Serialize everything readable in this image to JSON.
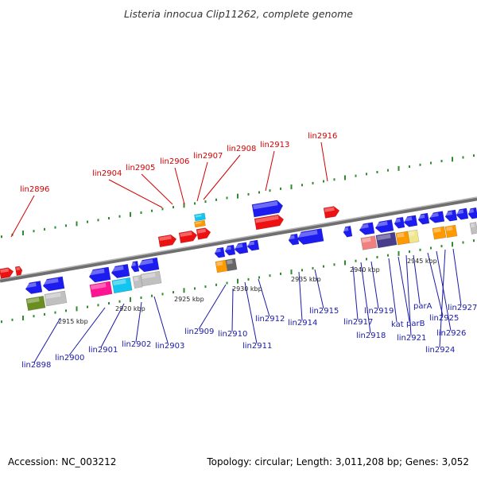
{
  "title": "Listeria innocua Clip11262, complete genome",
  "footer": {
    "accession": "Accession: NC_003212",
    "topology": "Topology: circular; Length: 3,011,208 bp; Genes: 3,052"
  },
  "colors": {
    "upper_label": "#d40000",
    "lower_label": "#1a1aa8",
    "backbone": "#808080",
    "tick": "#2e8b2e"
  },
  "kbp_labels": [
    "2915 kbp",
    "2920 kbp",
    "2925 kbp",
    "2930 kbp",
    "2935 kbp",
    "2940 kbp",
    "2945 kbp"
  ],
  "upper_genes": [
    "lin2896",
    "lin2904",
    "lin2905",
    "lin2906",
    "lin2907",
    "lin2908",
    "lin2913",
    "lin2916"
  ],
  "lower_genes": [
    "lin2898",
    "lin2900",
    "lin2901",
    "lin2902",
    "lin2903",
    "lin2909",
    "lin2910",
    "lin2911",
    "lin2912",
    "lin2914",
    "lin2915",
    "lin2917",
    "lin2918",
    "lin2919",
    "kat",
    "parB",
    "lin2921",
    "parA",
    "lin2925",
    "lin2926",
    "lin2924",
    "lin2927"
  ],
  "feature_colors": [
    "red",
    "blue",
    "olive",
    "silver",
    "magenta",
    "cyan",
    "orange",
    "dimgray",
    "salmon",
    "darkslateblue",
    "khaki"
  ]
}
